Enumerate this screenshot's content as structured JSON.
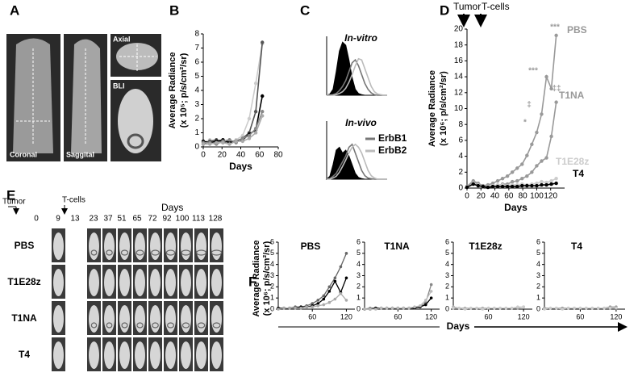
{
  "panels": {
    "letters": [
      "A",
      "B",
      "C",
      "D",
      "E",
      "F"
    ],
    "A": {
      "views": [
        "Coronal",
        "Saggital",
        "Axial",
        "BLI"
      ]
    },
    "E": {
      "tumor": "Tumor",
      "tcells": "T-cells",
      "days_label": "Days",
      "days": [
        0,
        9,
        13,
        23,
        37,
        51,
        65,
        72,
        92,
        100,
        113,
        128
      ],
      "groups": [
        "PBS",
        "T1E28z",
        "T1NA",
        "T4"
      ]
    },
    "F": {
      "ylabel": [
        "Average Radiance",
        "(x 10⁶; p/s/cm²/sr)"
      ],
      "xlabel": "Days"
    }
  },
  "chart_data": [
    {
      "type": "line",
      "xlabel": "Days",
      "ylabel": [
        "Average Radiance",
        "(x 10⁵; p/s/cm²/sr)"
      ],
      "x": [
        0,
        7,
        14,
        21,
        28,
        35,
        42,
        49,
        56,
        63
      ],
      "xlim": [
        0,
        80
      ],
      "xticks": [
        0,
        20,
        40,
        60,
        80
      ],
      "ylim": [
        0,
        8
      ],
      "yticks": [
        0,
        1,
        2,
        3,
        4,
        5,
        6,
        7,
        8
      ],
      "markers": true,
      "series": [
        {
          "color": "#cccccc",
          "values": [
            0.3,
            0.5,
            0.3,
            0.4,
            0.3,
            0.5,
            0.8,
            2,
            4.5,
            7.3
          ]
        },
        {
          "color": "#555555",
          "values": [
            0.2,
            0.4,
            0.5,
            0.3,
            0.4,
            0.4,
            0.6,
            1,
            2.5,
            7.4
          ]
        },
        {
          "color": "#000000",
          "values": [
            0.4,
            0.3,
            0.4,
            0.5,
            0.3,
            0.4,
            0.5,
            0.9,
            1.2,
            3.6
          ]
        },
        {
          "color": "#888888",
          "values": [
            0.3,
            0.3,
            0.2,
            0.4,
            0.5,
            0.3,
            0.6,
            0.8,
            1.3,
            2.5
          ]
        },
        {
          "color": "#aaaaaa",
          "values": [
            0.2,
            0.2,
            0.3,
            0.3,
            0.2,
            0.4,
            0.4,
            0.6,
            1,
            2.2
          ]
        }
      ]
    },
    {
      "type": "area",
      "title": "In-vitro",
      "x": [
        0,
        1,
        2,
        3,
        4,
        5,
        6,
        7,
        8,
        9,
        10,
        11,
        12,
        13,
        14,
        15,
        16,
        17,
        18,
        19
      ],
      "xlim": [
        0,
        19
      ],
      "ylim": [
        0,
        100
      ],
      "series": [
        {
          "color": "#000000",
          "filled": true,
          "values": [
            0,
            2,
            10,
            40,
            75,
            90,
            85,
            60,
            30,
            10,
            3,
            1,
            0,
            0,
            0,
            0,
            0,
            0,
            0,
            0
          ]
        },
        {
          "color": "#777777",
          "values": [
            0,
            0,
            1,
            3,
            8,
            15,
            25,
            40,
            55,
            60,
            50,
            35,
            20,
            10,
            4,
            1,
            0,
            0,
            0,
            0
          ]
        },
        {
          "color": "#bbbbbb",
          "values": [
            0,
            0,
            0,
            1,
            3,
            6,
            12,
            22,
            35,
            50,
            62,
            60,
            45,
            30,
            15,
            6,
            2,
            1,
            0,
            0
          ]
        }
      ]
    },
    {
      "type": "area",
      "title": "In-vivo",
      "legend": "right",
      "x": [
        0,
        1,
        2,
        3,
        4,
        5,
        6,
        7,
        8,
        9,
        10,
        11,
        12,
        13,
        14,
        15,
        16,
        17,
        18,
        19
      ],
      "xlim": [
        0,
        19
      ],
      "ylim": [
        0,
        100
      ],
      "series": [
        {
          "color": "#000000",
          "filled": true,
          "values": [
            0,
            5,
            25,
            50,
            55,
            45,
            50,
            40,
            25,
            10,
            3,
            1,
            0,
            0,
            0,
            0,
            0,
            0,
            0,
            0
          ]
        },
        {
          "name": "ErbB1",
          "color": "#777777",
          "values": [
            0,
            1,
            5,
            10,
            20,
            30,
            40,
            55,
            60,
            45,
            30,
            15,
            6,
            2,
            1,
            0,
            0,
            0,
            0,
            0
          ]
        },
        {
          "name": "ErbB2",
          "color": "#bbbbbb",
          "values": [
            0,
            0,
            2,
            5,
            12,
            22,
            33,
            45,
            55,
            60,
            55,
            45,
            30,
            15,
            6,
            2,
            0,
            0,
            0,
            0
          ]
        }
      ]
    },
    {
      "type": "line",
      "xlabel": "Days",
      "ylabel": [
        "Average Radiance",
        "(x 10⁶; p/s/cm²/sr)"
      ],
      "legend": "line-end",
      "arrows": [
        "Tumor",
        "T-cells"
      ],
      "annotations": [
        "***",
        "***",
        "‡‡",
        "‡",
        "*"
      ],
      "x": [
        0,
        9,
        16,
        23,
        30,
        37,
        44,
        51,
        58,
        65,
        72,
        79,
        86,
        93,
        100,
        107,
        114,
        121,
        128
      ],
      "xlim": [
        0,
        140
      ],
      "xticks": [
        0,
        20,
        40,
        60,
        80,
        100,
        120
      ],
      "ylim": [
        0,
        20
      ],
      "yticks": [
        0,
        2,
        4,
        6,
        8,
        10,
        12,
        14,
        16,
        18,
        20
      ],
      "markers": true,
      "series": [
        {
          "name": "PBS",
          "color": "#999999",
          "values": [
            0.2,
            0.9,
            0.6,
            0.3,
            0.4,
            0.6,
            0.9,
            1.2,
            1.5,
            2,
            2.5,
            3,
            4.1,
            5.5,
            7,
            9.3,
            14,
            12.5,
            19.2
          ]
        },
        {
          "name": "T1NA",
          "color": "#999999",
          "values": [
            0.1,
            0.8,
            0.5,
            0.2,
            0.2,
            0.3,
            0.3,
            0.5,
            0.5,
            0.8,
            0.9,
            1.2,
            1.5,
            2,
            2.8,
            3.4,
            3.8,
            6.5,
            10.8
          ]
        },
        {
          "name": "T1E28z",
          "color": "#cccccc",
          "values": [
            0.1,
            0.6,
            0.4,
            0.2,
            0.2,
            0.3,
            0.4,
            0.4,
            0.3,
            0.4,
            0.4,
            0.5,
            0.4,
            0.5,
            0.6,
            0.8,
            0.7,
            0.9,
            1.2
          ]
        },
        {
          "name": "T4",
          "color": "#000000",
          "values": [
            0.1,
            0.5,
            0.3,
            0.2,
            0.1,
            0.2,
            0.2,
            0.2,
            0.2,
            0.2,
            0.2,
            0.3,
            0.3,
            0.3,
            0.3,
            0.4,
            0.4,
            0.5,
            0.6
          ]
        }
      ]
    },
    {
      "type": "line",
      "title": "PBS",
      "x": [
        0,
        10,
        20,
        30,
        40,
        50,
        60,
        70,
        80,
        90,
        100,
        110,
        120
      ],
      "xlim": [
        0,
        135
      ],
      "xticks": [
        60,
        120
      ],
      "ylim": [
        0,
        6
      ],
      "yticks": [
        0,
        1,
        2,
        3,
        4,
        5,
        6
      ],
      "markers": true,
      "series": [
        {
          "color": "#666666",
          "values": [
            0.1,
            0.1,
            0.1,
            0.2,
            0.2,
            0.3,
            0.5,
            0.8,
            1.2,
            2,
            2.8,
            3.8,
            5
          ]
        },
        {
          "color": "#000000",
          "values": [
            0.1,
            0.1,
            0.1,
            0.1,
            0.2,
            0.2,
            0.3,
            0.5,
            0.9,
            1.6,
            2.5,
            1.5,
            2.8
          ]
        },
        {
          "color": "#aaaaaa",
          "values": [
            0,
            0.1,
            0.1,
            0.1,
            0.1,
            0.2,
            0.2,
            0.3,
            0.4,
            0.6,
            0.9,
            1.4,
            0.8
          ]
        }
      ]
    },
    {
      "type": "line",
      "title": "T1NA",
      "x": [
        0,
        10,
        20,
        30,
        40,
        50,
        60,
        70,
        80,
        90,
        100,
        110,
        120
      ],
      "xlim": [
        0,
        135
      ],
      "xticks": [
        60,
        120
      ],
      "ylim": [
        0,
        6
      ],
      "yticks": [
        0,
        1,
        2,
        3,
        4,
        5,
        6
      ],
      "markers": true,
      "series": [
        {
          "color": "#888888",
          "values": [
            0,
            0.1,
            0.1,
            0.1,
            0.1,
            0.1,
            0.1,
            0.1,
            0.1,
            0.1,
            0.2,
            0.6,
            2.2
          ]
        },
        {
          "color": "#000000",
          "values": [
            0,
            0,
            0.1,
            0.1,
            0.1,
            0.1,
            0.1,
            0.1,
            0.1,
            0.1,
            0.2,
            0.4,
            1
          ]
        },
        {
          "color": "#bbbbbb",
          "values": [
            0,
            0,
            0,
            0.1,
            0.1,
            0.1,
            0.1,
            0.1,
            0.1,
            0.2,
            0.3,
            0.8,
            1.6
          ]
        }
      ]
    },
    {
      "type": "line",
      "title": "T1E28z",
      "x": [
        0,
        10,
        20,
        30,
        40,
        50,
        60,
        70,
        80,
        90,
        100,
        110,
        120
      ],
      "xlim": [
        0,
        135
      ],
      "xticks": [
        60,
        120
      ],
      "ylim": [
        0,
        6
      ],
      "yticks": [
        0,
        1,
        2,
        3,
        4,
        5,
        6
      ],
      "markers": true,
      "series": [
        {
          "color": "#aaaaaa",
          "values": [
            0.2,
            0.1,
            0.1,
            0.1,
            0.1,
            0.1,
            0.1,
            0.1,
            0.1,
            0.1,
            0.1,
            0.1,
            0.2
          ]
        },
        {
          "color": "#cccccc",
          "values": [
            0.1,
            0.1,
            0,
            0.1,
            0.1,
            0,
            0.1,
            0.1,
            0.1,
            0.1,
            0.1,
            0.2,
            0.2
          ]
        }
      ]
    },
    {
      "type": "line",
      "title": "T4",
      "x": [
        0,
        10,
        20,
        30,
        40,
        50,
        60,
        70,
        80,
        90,
        100,
        110,
        120
      ],
      "xlim": [
        0,
        135
      ],
      "xticks": [
        60,
        120
      ],
      "ylim": [
        0,
        6
      ],
      "yticks": [
        0,
        1,
        2,
        3,
        4,
        5,
        6
      ],
      "markers": true,
      "series": [
        {
          "color": "#999999",
          "values": [
            0.1,
            0.1,
            0.1,
            0.1,
            0.1,
            0.1,
            0.1,
            0.1,
            0.1,
            0.1,
            0.1,
            0.2,
            0.2
          ]
        },
        {
          "color": "#cccccc",
          "values": [
            0,
            0.1,
            0.1,
            0,
            0.1,
            0.1,
            0.1,
            0.1,
            0.1,
            0.1,
            0.1,
            0.1,
            0.1
          ]
        }
      ]
    }
  ]
}
